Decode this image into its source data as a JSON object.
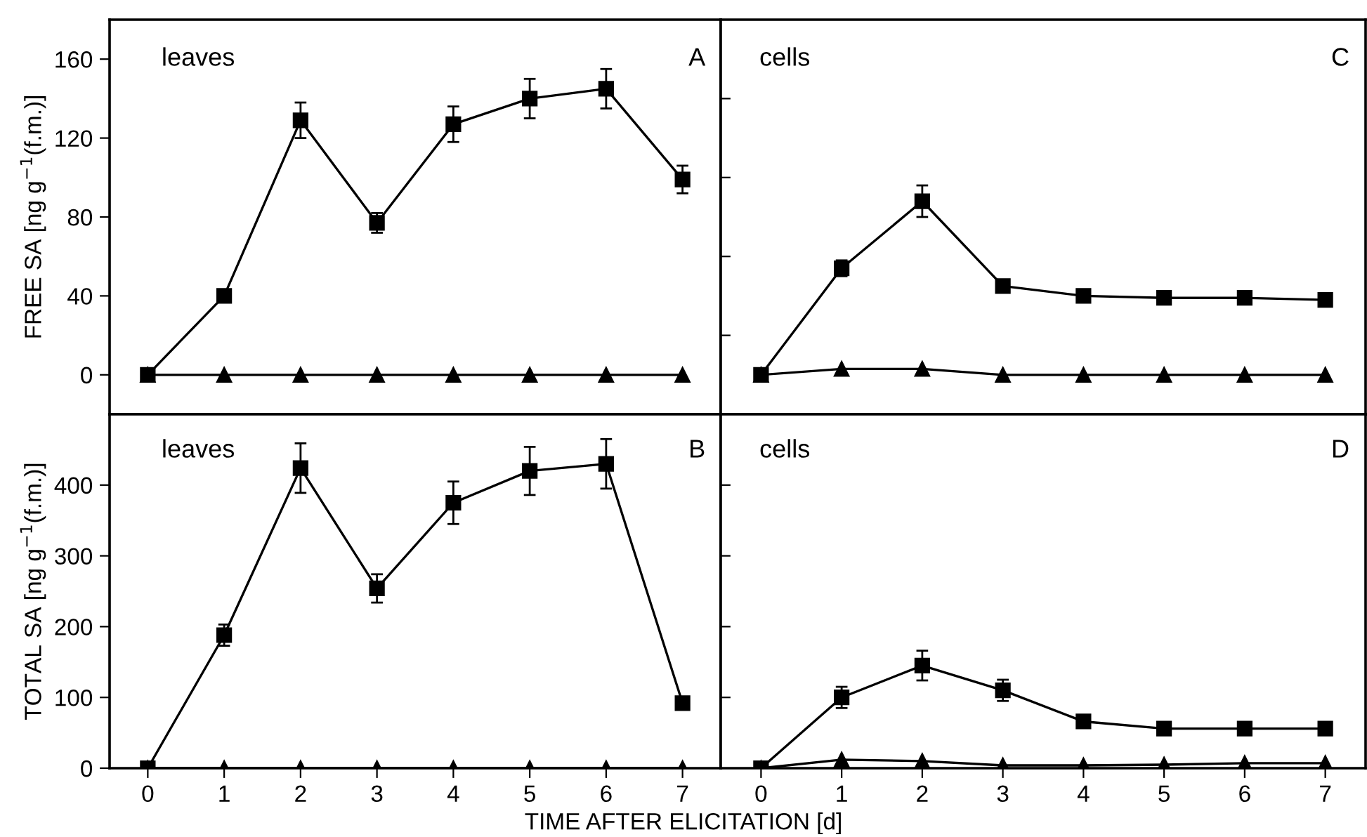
{
  "chart_data": [
    {
      "type": "line",
      "ylabel": "FREE SA [ng g$^{−1}$(f.m.)]",
      "annotations": [
        "leaves",
        "A"
      ],
      "x": [
        0,
        1,
        2,
        3,
        4,
        5,
        6,
        7
      ],
      "xlim": [
        -0.5,
        7.5
      ],
      "ylim": [
        -20,
        180
      ],
      "yticks": [
        0,
        40,
        80,
        120,
        160
      ],
      "tick_labels": "y",
      "grid": false,
      "legend": false,
      "series": [
        {
          "color": "#000000",
          "marker": "square",
          "values": [
            0,
            40,
            129,
            77,
            127,
            140,
            145,
            99
          ],
          "errors": [
            null,
            2,
            9,
            5,
            9,
            10,
            10,
            7
          ]
        },
        {
          "color": "#000000",
          "marker": "triangle",
          "values": [
            0,
            0,
            0,
            0,
            0,
            0,
            0,
            0
          ]
        }
      ]
    },
    {
      "type": "line",
      "annotations": [
        "cells",
        "C"
      ],
      "x": [
        0,
        1,
        2,
        3,
        4,
        5,
        6,
        7
      ],
      "xlim": [
        -0.5,
        7.5
      ],
      "ylim": [
        -20,
        180
      ],
      "yticks": [
        {
          "value": 20,
          "label": null
        },
        {
          "value": 60,
          "label": null
        },
        {
          "value": 100,
          "label": null
        },
        {
          "value": 140,
          "label": null
        }
      ],
      "tick_labels": false,
      "grid": false,
      "legend": false,
      "series": [
        {
          "color": "#000000",
          "marker": "square",
          "values": [
            0,
            54,
            88,
            45,
            40,
            39,
            39,
            38
          ],
          "errors": [
            null,
            4,
            8,
            2,
            null,
            null,
            null,
            null
          ]
        },
        {
          "color": "#000000",
          "marker": "triangle",
          "values": [
            0,
            3,
            3,
            0,
            0,
            0,
            0,
            0
          ]
        }
      ]
    },
    {
      "type": "line",
      "ylabel": "TOTAL SA [ng g$^{−1}$(f.m.)]",
      "xlabel": "TIME AFTER ELICITATION [d]",
      "annotations": [
        "leaves",
        "B"
      ],
      "x": [
        0,
        1,
        2,
        3,
        4,
        5,
        6,
        7
      ],
      "xlim": [
        -0.5,
        7.5
      ],
      "xticks": [
        0,
        1,
        2,
        3,
        4,
        5,
        6,
        7
      ],
      "ylim": [
        0,
        500
      ],
      "yticks": [
        0,
        100,
        200,
        300,
        400
      ],
      "grid": false,
      "legend": false,
      "series": [
        {
          "color": "#000000",
          "marker": "square",
          "values": [
            0,
            188,
            424,
            254,
            375,
            420,
            430,
            92
          ],
          "errors": [
            null,
            15,
            35,
            20,
            30,
            34,
            35,
            null
          ]
        },
        {
          "color": "#000000",
          "marker": "triangle",
          "values": [
            0,
            0,
            0,
            0,
            0,
            0,
            0,
            0
          ]
        }
      ]
    },
    {
      "type": "line",
      "annotations": [
        "cells",
        "D"
      ],
      "x": [
        0,
        1,
        2,
        3,
        4,
        5,
        6,
        7
      ],
      "xlim": [
        -0.5,
        7.5
      ],
      "xticks": [
        0,
        1,
        2,
        3,
        4,
        5,
        6,
        7
      ],
      "ylim": [
        0,
        500
      ],
      "yticks": [
        {
          "value": 100,
          "label": null
        },
        {
          "value": 200,
          "label": null
        },
        {
          "value": 300,
          "label": null
        },
        {
          "value": 400,
          "label": null
        }
      ],
      "tick_labels": "x",
      "grid": false,
      "legend": false,
      "series": [
        {
          "color": "#000000",
          "marker": "square",
          "values": [
            0,
            100,
            145,
            110,
            66,
            56,
            56,
            56
          ],
          "errors": [
            null,
            15,
            21,
            15,
            5,
            null,
            null,
            null
          ]
        },
        {
          "color": "#000000",
          "marker": "triangle",
          "values": [
            0,
            12,
            10,
            4,
            4,
            5,
            7,
            7
          ]
        }
      ]
    }
  ]
}
